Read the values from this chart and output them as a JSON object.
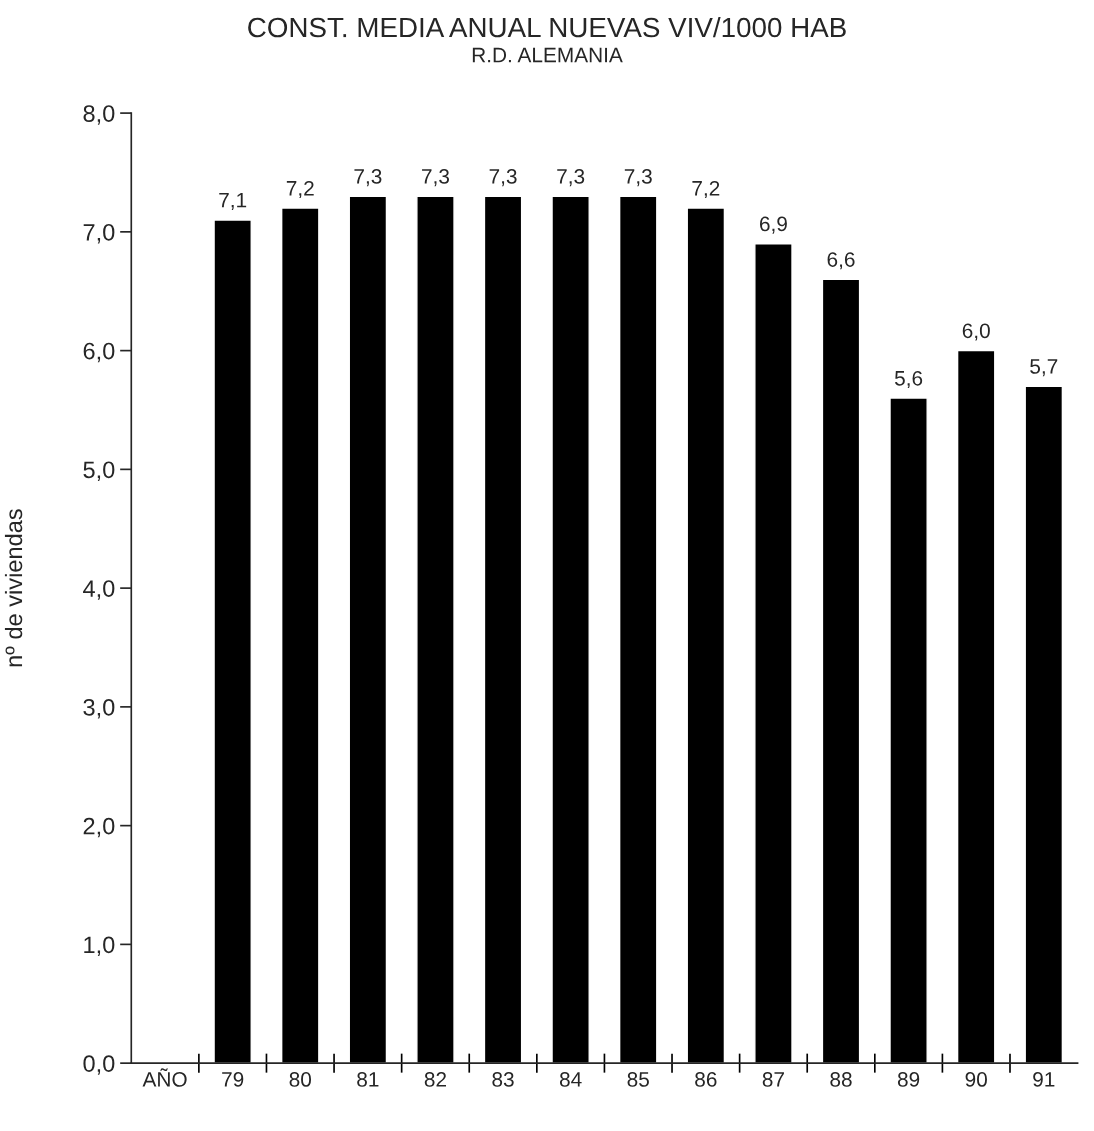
{
  "chart_data": {
    "type": "bar",
    "title": "CONST. MEDIA ANUAL NUEVAS VIV/1000 HAB",
    "subtitle": "R.D. ALEMANIA",
    "ylabel": "nº de viviendas",
    "categories": [
      "AÑO",
      "79",
      "80",
      "81",
      "82",
      "83",
      "84",
      "85",
      "86",
      "87",
      "88",
      "89",
      "90",
      "91"
    ],
    "values": [
      null,
      7.1,
      7.2,
      7.3,
      7.3,
      7.3,
      7.3,
      7.3,
      7.2,
      6.9,
      6.6,
      5.6,
      6.0,
      5.7
    ],
    "value_labels": [
      null,
      "7,1",
      "7,2",
      "7,3",
      "7,3",
      "7,3",
      "7,3",
      "7,3",
      "7,2",
      "6,9",
      "6,6",
      "5,6",
      "6,0",
      "5,7"
    ],
    "color": "#000000",
    "ylim": [
      0,
      8
    ],
    "yticks": [
      {
        "value": 0,
        "label": "0,0"
      },
      {
        "value": 1,
        "label": "1,0"
      },
      {
        "value": 2,
        "label": "2,0"
      },
      {
        "value": 3,
        "label": "3,0"
      },
      {
        "value": 4,
        "label": "4,0"
      },
      {
        "value": 5,
        "label": "5,0"
      },
      {
        "value": 6,
        "label": "6,0"
      },
      {
        "value": 7,
        "label": "7,0"
      },
      {
        "value": 8,
        "label": "8,0"
      }
    ],
    "grid": false,
    "legend": false
  }
}
